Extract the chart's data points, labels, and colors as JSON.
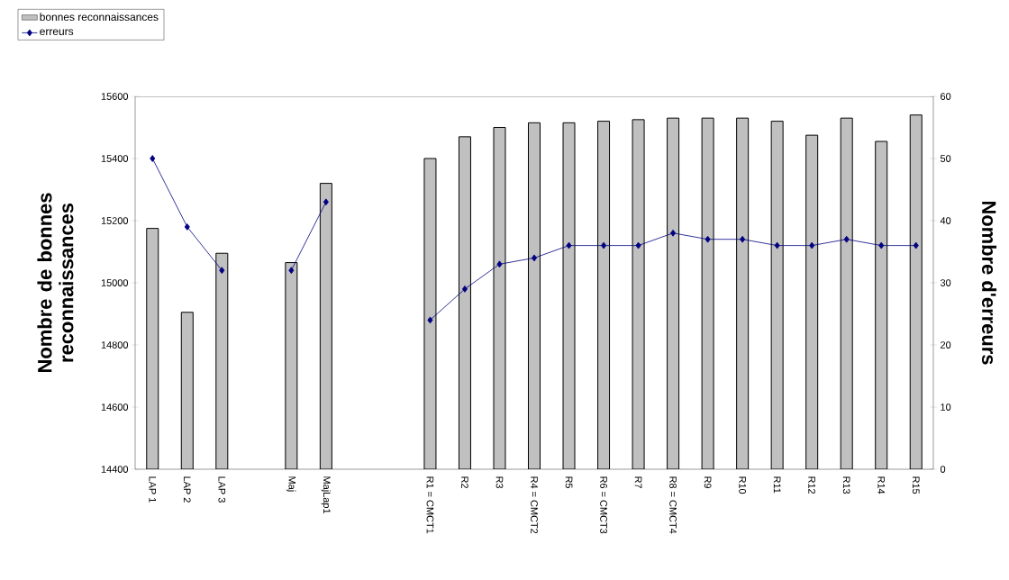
{
  "chart_data": {
    "type": "bar",
    "ylabel": "Nombre de bonnes reconnaissances",
    "y2label": "Nombre d'erreurs",
    "categories": [
      "LAP 1",
      "LAP 2",
      "LAP 3",
      null,
      "Maj",
      "MajLap1",
      null,
      null,
      "R1 = CMCT1",
      "R2",
      "R3",
      "R4 = CMCT2",
      "R5",
      "R6 = CMCT3",
      "R7",
      "R8 = CMCT4",
      "R9",
      "R10",
      "R11",
      "R12",
      "R13",
      "R14",
      "R15"
    ],
    "series": [
      {
        "name": "bonnes reconnaissances",
        "color": "#c0c0c0",
        "values": [
          15175,
          14905,
          15095,
          null,
          15065,
          15320,
          null,
          null,
          15400,
          15470,
          15500,
          15515,
          15515,
          15520,
          15525,
          15530,
          15530,
          15530,
          15520,
          15475,
          15530,
          15455,
          15540
        ]
      },
      {
        "name": "erreurs",
        "type": "line",
        "axis": "y2",
        "color": "#000080",
        "marker": "diamond",
        "values": [
          50,
          39,
          32,
          null,
          32,
          43,
          null,
          null,
          24,
          29,
          33,
          34,
          36,
          36,
          36,
          38,
          37,
          37,
          36,
          36,
          37,
          36,
          36
        ]
      }
    ],
    "ylim": [
      14400,
      15600
    ],
    "yticks": [
      14400,
      14600,
      14800,
      15000,
      15200,
      15400,
      15600
    ],
    "y2lim": [
      0,
      60
    ],
    "y2ticks": [
      0,
      10,
      20,
      30,
      40,
      50,
      60
    ],
    "grid": false,
    "legend": "top left"
  }
}
